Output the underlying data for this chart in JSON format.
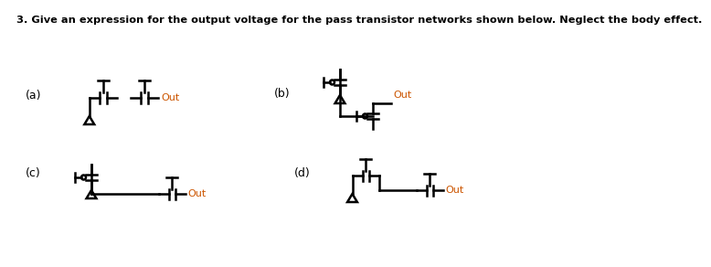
{
  "title": "3. Give an expression for the output voltage for the pass transistor networks shown below. Neglect the body effect.",
  "title_color": "#000000",
  "orange_color": "#cc5500",
  "label_a": "(a)",
  "label_b": "(b)",
  "label_c": "(c)",
  "label_d": "(d)",
  "out_label": "Out",
  "bg_color": "#ffffff",
  "line_color": "#000000",
  "lw": 1.8,
  "title_fontsize": 8.2,
  "label_fontsize": 9.0,
  "out_fontsize": 8.0
}
